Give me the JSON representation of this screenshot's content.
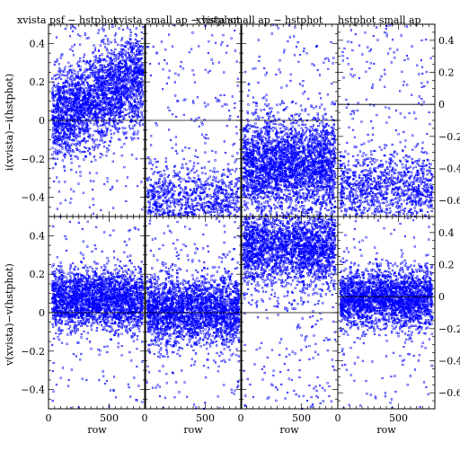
{
  "chart_data": {
    "type": "scatter",
    "layout": "2 rows x 4 columns of panels sharing axes",
    "point_color": "#0000ff",
    "point_marker": "small open squares",
    "titles": [
      "xvista psf − hstphot",
      "xvista small ap − hstphot",
      "xvista small ap − hstphot",
      "hstphot small ap"
    ],
    "xlabel": "row",
    "ylabels": [
      "i(xvista)−i(hstphot)",
      "v(xvista)−v(hstphot)"
    ],
    "xlim": [
      0,
      800
    ],
    "ylim": [
      -0.5,
      0.5
    ],
    "xticks": [
      "0",
      "500"
    ],
    "yticks": [
      "−0.4",
      "−0.2",
      "0",
      "0.2",
      "0.4"
    ],
    "right_yticks": [
      "0.4",
      "0.2",
      "0",
      "−0.2",
      "−0.4",
      "−0.6"
    ],
    "right_ylim": [
      -0.7,
      0.5
    ],
    "zero_line": true,
    "panels": [
      {
        "row": "i",
        "col": 1,
        "n_points": 2600,
        "center": 0.12,
        "spread": 0.12,
        "center_slope": 0.12,
        "x_range": [
          30,
          780
        ],
        "n_outliers": 150
      },
      {
        "row": "i",
        "col": 2,
        "n_points": 900,
        "center": -0.42,
        "spread": 0.09,
        "center_slope": 0.0,
        "x_range": [
          20,
          780
        ],
        "n_outliers": 170
      },
      {
        "row": "i",
        "col": 3,
        "n_points": 2800,
        "center": -0.24,
        "spread": 0.13,
        "center_slope": 0.0,
        "x_range": [
          20,
          780
        ],
        "n_outliers": 150
      },
      {
        "row": "i",
        "col": 4,
        "n_points": 1000,
        "center": -0.52,
        "spread": 0.11,
        "center_slope": 0.0,
        "x_range": [
          20,
          780
        ],
        "n_outliers": 200,
        "uses_right_axis": true
      },
      {
        "row": "v",
        "col": 1,
        "n_points": 2400,
        "center": 0.07,
        "spread": 0.08,
        "center_slope": 0.0,
        "x_range": [
          30,
          780
        ],
        "n_outliers": 140
      },
      {
        "row": "v",
        "col": 2,
        "n_points": 2400,
        "center": 0.01,
        "spread": 0.09,
        "center_slope": 0.0,
        "x_range": [
          20,
          780
        ],
        "n_outliers": 200
      },
      {
        "row": "v",
        "col": 3,
        "n_points": 2200,
        "center": 0.34,
        "spread": 0.1,
        "center_slope": 0.0,
        "x_range": [
          20,
          780
        ],
        "n_outliers": 260
      },
      {
        "row": "v",
        "col": 4,
        "n_points": 2400,
        "center": -0.01,
        "spread": 0.09,
        "center_slope": 0.0,
        "x_range": [
          20,
          780
        ],
        "n_outliers": 160,
        "uses_right_axis": true
      }
    ]
  }
}
